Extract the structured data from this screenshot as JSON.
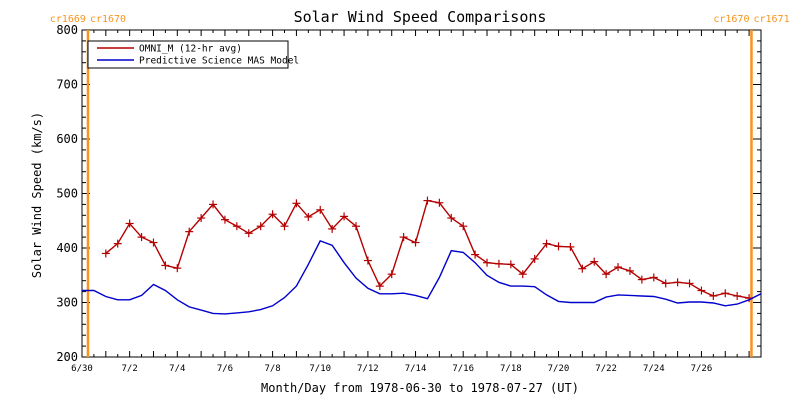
{
  "chart_data": {
    "type": "line",
    "title": "Solar Wind Speed Comparisons",
    "xlabel": "Month/Day from 1978-06-30 to 1978-07-27 (UT)",
    "ylabel": "Solar Wind Speed (km/s)",
    "xlim_days": [
      0,
      28.5
    ],
    "ylim": [
      200,
      800
    ],
    "yticks": [
      200,
      300,
      400,
      500,
      600,
      700,
      800
    ],
    "xticks": [
      {
        "day": 0,
        "label": "6/30"
      },
      {
        "day": 2,
        "label": "7/2"
      },
      {
        "day": 4,
        "label": "7/4"
      },
      {
        "day": 6,
        "label": "7/6"
      },
      {
        "day": 8,
        "label": "7/8"
      },
      {
        "day": 10,
        "label": "7/10"
      },
      {
        "day": 12,
        "label": "7/12"
      },
      {
        "day": 14,
        "label": "7/14"
      },
      {
        "day": 16,
        "label": "7/16"
      },
      {
        "day": 18,
        "label": "7/18"
      },
      {
        "day": 20,
        "label": "7/20"
      },
      {
        "day": 22,
        "label": "7/22"
      },
      {
        "day": 24,
        "label": "7/24"
      },
      {
        "day": 26,
        "label": "7/26"
      }
    ],
    "carrington_markers": [
      {
        "day": 0.25,
        "left_label": "cr1669",
        "right_label": "cr1670"
      },
      {
        "day": 28.1,
        "left_label": "cr1670",
        "right_label": "cr1671"
      }
    ],
    "grid": false,
    "legend": "top-left",
    "series": [
      {
        "name": "OMNI_M (12-hr avg)",
        "color": "#b40000",
        "marker": "+",
        "points": [
          [
            1.0,
            390
          ],
          [
            1.5,
            408
          ],
          [
            2.0,
            445
          ],
          [
            2.5,
            420
          ],
          [
            3.0,
            410
          ],
          [
            3.5,
            368
          ],
          [
            4.0,
            363
          ],
          [
            4.5,
            430
          ],
          [
            5.0,
            455
          ],
          [
            5.5,
            480
          ],
          [
            6.0,
            452
          ],
          [
            6.5,
            440
          ],
          [
            7.0,
            427
          ],
          [
            7.5,
            440
          ],
          [
            8.0,
            462
          ],
          [
            8.5,
            440
          ],
          [
            9.0,
            482
          ],
          [
            9.5,
            457
          ],
          [
            10.0,
            470
          ],
          [
            10.5,
            435
          ],
          [
            11.0,
            458
          ],
          [
            11.5,
            440
          ],
          [
            12.0,
            377
          ],
          [
            12.5,
            330
          ],
          [
            13.0,
            352
          ],
          [
            13.5,
            420
          ],
          [
            14.0,
            410
          ],
          [
            14.5,
            487
          ],
          [
            15.0,
            483
          ],
          [
            15.5,
            455
          ],
          [
            16.0,
            440
          ],
          [
            16.5,
            388
          ],
          [
            17.0,
            373
          ],
          [
            17.5,
            371
          ],
          [
            18.0,
            370
          ],
          [
            18.5,
            352
          ],
          [
            19.0,
            380
          ],
          [
            19.5,
            408
          ],
          [
            20.0,
            403
          ],
          [
            20.5,
            402
          ],
          [
            21.0,
            362
          ],
          [
            21.5,
            375
          ],
          [
            22.0,
            352
          ],
          [
            22.5,
            365
          ],
          [
            23.0,
            358
          ],
          [
            23.5,
            342
          ],
          [
            24.0,
            346
          ],
          [
            24.5,
            335
          ],
          [
            25.0,
            337
          ],
          [
            25.5,
            335
          ],
          [
            26.0,
            322
          ],
          [
            26.5,
            312
          ],
          [
            27.0,
            317
          ],
          [
            27.5,
            312
          ],
          [
            28.0,
            308
          ]
        ]
      },
      {
        "name": "Predictive Science MAS Model",
        "color": "#0000cc",
        "marker": "none",
        "points": [
          [
            0.0,
            322
          ],
          [
            0.5,
            322
          ],
          [
            1.0,
            311
          ],
          [
            1.5,
            305
          ],
          [
            2.0,
            305
          ],
          [
            2.5,
            313
          ],
          [
            3.0,
            333
          ],
          [
            3.5,
            322
          ],
          [
            4.0,
            305
          ],
          [
            4.5,
            292
          ],
          [
            5.0,
            286
          ],
          [
            5.5,
            280
          ],
          [
            6.0,
            279
          ],
          [
            6.5,
            281
          ],
          [
            7.0,
            283
          ],
          [
            7.5,
            287
          ],
          [
            8.0,
            294
          ],
          [
            8.5,
            309
          ],
          [
            9.0,
            330
          ],
          [
            9.5,
            370
          ],
          [
            10.0,
            413
          ],
          [
            10.5,
            405
          ],
          [
            11.0,
            373
          ],
          [
            11.5,
            345
          ],
          [
            12.0,
            326
          ],
          [
            12.5,
            316
          ],
          [
            13.0,
            316
          ],
          [
            13.5,
            317
          ],
          [
            14.0,
            313
          ],
          [
            14.5,
            307
          ],
          [
            15.0,
            346
          ],
          [
            15.5,
            395
          ],
          [
            16.0,
            392
          ],
          [
            16.5,
            373
          ],
          [
            17.0,
            350
          ],
          [
            17.5,
            337
          ],
          [
            18.0,
            330
          ],
          [
            18.5,
            330
          ],
          [
            19.0,
            329
          ],
          [
            19.5,
            314
          ],
          [
            20.0,
            302
          ],
          [
            20.5,
            300
          ],
          [
            21.0,
            300
          ],
          [
            21.5,
            300
          ],
          [
            22.0,
            310
          ],
          [
            22.5,
            314
          ],
          [
            23.0,
            313
          ],
          [
            23.5,
            312
          ],
          [
            24.0,
            311
          ],
          [
            24.5,
            306
          ],
          [
            25.0,
            299
          ],
          [
            25.5,
            301
          ],
          [
            26.0,
            301
          ],
          [
            26.5,
            299
          ],
          [
            27.0,
            294
          ],
          [
            27.5,
            297
          ],
          [
            28.0,
            305
          ],
          [
            28.5,
            316
          ]
        ]
      }
    ]
  }
}
